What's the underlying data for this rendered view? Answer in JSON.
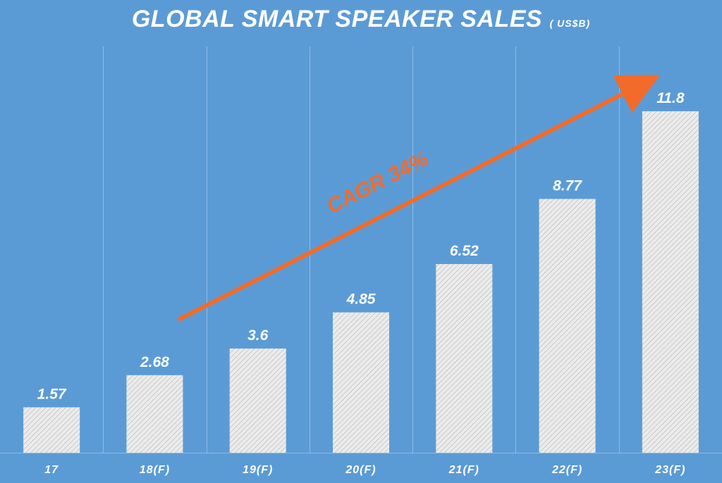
{
  "title": "GLOBAL SMART SPEAKER SALES",
  "unit": "( US$B)",
  "annotation": "CAGR 34%",
  "colors": {
    "background": "#5b9bd5",
    "bar_fill": "#ececec",
    "bar_hatch": "#b8b8b8",
    "gridline": "#8fbbe3",
    "arrow": "#f26b2a",
    "text": "#ffffff"
  },
  "chart_data": {
    "type": "bar",
    "title": "GLOBAL SMART SPEAKER SALES",
    "unit": "( US$B)",
    "categories": [
      "17",
      "18(F)",
      "19(F)",
      "20(F)",
      "21(F)",
      "22(F)",
      "23(F)"
    ],
    "values": [
      1.57,
      2.68,
      3.6,
      4.85,
      6.52,
      8.77,
      11.8
    ],
    "data_labels": [
      "1.57",
      "2.68",
      "3.6",
      "4.85",
      "6.52",
      "8.77",
      "11.8"
    ],
    "xlabel": "",
    "ylabel": "",
    "ylim": [
      0,
      13
    ],
    "grid": "vertical separators",
    "legend": "none",
    "annotation": {
      "text": "CAGR 34%",
      "style": "upward arrow from 18(F) to 23(F)"
    }
  }
}
